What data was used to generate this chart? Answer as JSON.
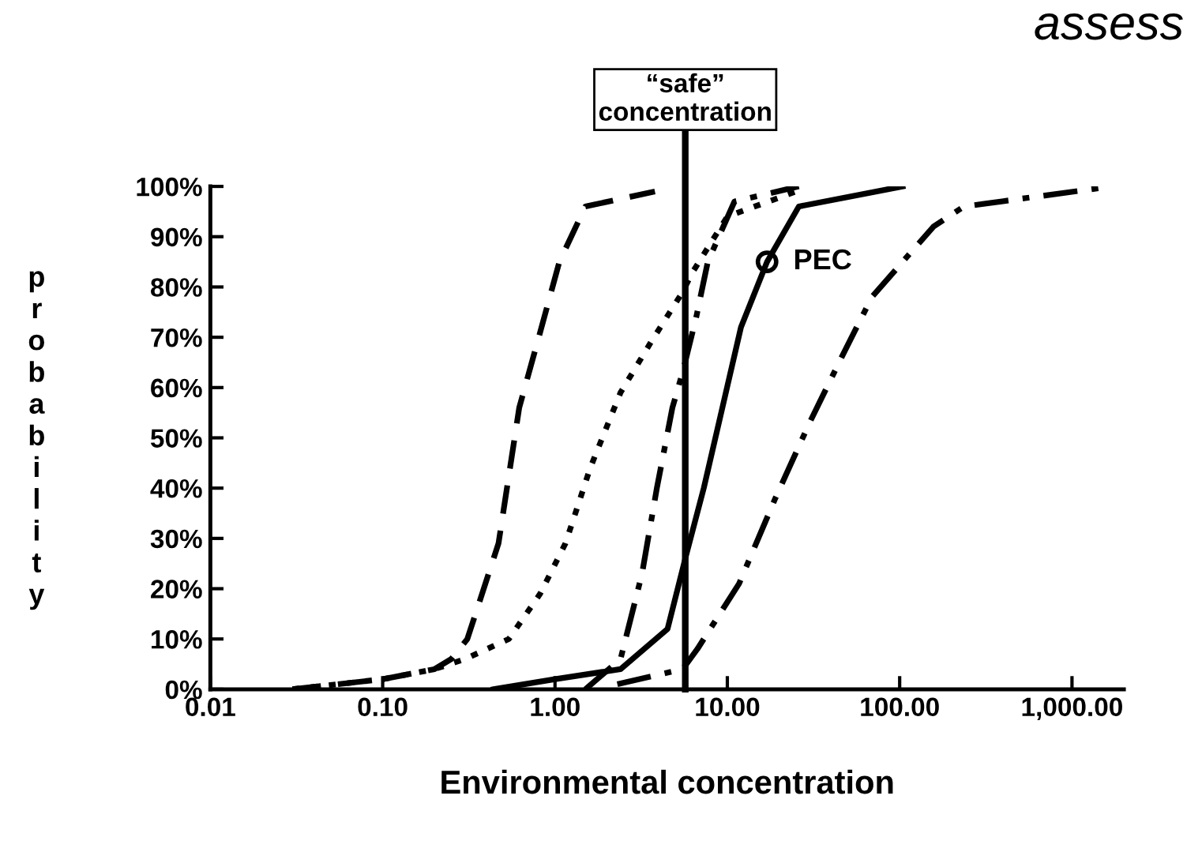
{
  "chart_data": {
    "type": "line",
    "xlabel": "Environmental concentration",
    "ylabel": "probability",
    "log": "x",
    "xlim": [
      0.01,
      2000
    ],
    "ylim": [
      0,
      100
    ],
    "xticks": [
      {
        "value": 0.01,
        "label": "0.01"
      },
      {
        "value": 0.1,
        "label": "0.10"
      },
      {
        "value": 1,
        "label": "1.00"
      },
      {
        "value": 10,
        "label": "10.00"
      },
      {
        "value": 100,
        "label": "100.00"
      },
      {
        "value": 1000,
        "label": "1,000.00"
      }
    ],
    "yticks": [
      {
        "value": 0,
        "label": "0%"
      },
      {
        "value": 10,
        "label": "10%"
      },
      {
        "value": 20,
        "label": "20%"
      },
      {
        "value": 30,
        "label": "30%"
      },
      {
        "value": 40,
        "label": "40%"
      },
      {
        "value": 50,
        "label": "50%"
      },
      {
        "value": 60,
        "label": "60%"
      },
      {
        "value": 70,
        "label": "70%"
      },
      {
        "value": 80,
        "label": "80%"
      },
      {
        "value": 90,
        "label": "90%"
      },
      {
        "value": 100,
        "label": "100%"
      }
    ],
    "grid": false,
    "legend": false,
    "marker": "none",
    "series": [
      {
        "color": "#000000",
        "line_style": "dashed",
        "x": [
          0.03,
          0.1,
          0.2,
          0.25,
          0.31,
          0.47,
          0.62,
          0.82,
          1.06,
          1.5,
          3.8
        ],
        "values": [
          0,
          2,
          4,
          6,
          10,
          29,
          56,
          71,
          85,
          96,
          99
        ]
      },
      {
        "color": "#000000",
        "line_style": "dotted",
        "x": [
          0.03,
          0.1,
          0.2,
          0.3,
          0.54,
          0.82,
          1.15,
          1.6,
          2.4,
          3.6,
          5.5,
          6.3,
          10,
          25
        ],
        "values": [
          0,
          2,
          4,
          6,
          10,
          19,
          29,
          44,
          59,
          69,
          79,
          83,
          94,
          99
        ]
      },
      {
        "color": "#000000",
        "line_style": "dashdot",
        "x": [
          1.5,
          2.4,
          3.2,
          3.9,
          4.8,
          5.5,
          6.6,
          7.7,
          11,
          26
        ],
        "values": [
          0,
          6,
          23,
          40,
          56,
          63,
          74,
          85,
          97,
          100
        ]
      },
      {
        "color": "#000000",
        "line_style": "solid",
        "x": [
          0.44,
          1,
          2.4,
          4.5,
          5.7,
          7.3,
          12,
          17,
          26,
          104
        ],
        "values": [
          0,
          2,
          4,
          12,
          26,
          40,
          72,
          85,
          96,
          100
        ]
      },
      {
        "color": "#000000",
        "line_style": "dashdot",
        "x": [
          2.3,
          5.5,
          6.7,
          11.7,
          19,
          30,
          46,
          69,
          104,
          157,
          236,
          1700
        ],
        "values": [
          1,
          4,
          8,
          21,
          38,
          53,
          66,
          78,
          85,
          92,
          96,
          100
        ]
      },
      {
        "type": "scatter",
        "color": "#000000",
        "marker": "circle",
        "x": [
          17
        ],
        "values": [
          85
        ]
      }
    ],
    "ref_lines": [
      {
        "axis": "x",
        "value": 5.7,
        "label": "“safe”\nconcentration",
        "color": "#000000"
      }
    ],
    "annotations": [
      {
        "text": "PEC",
        "x": 17,
        "y": 85
      },
      "assess"
    ]
  }
}
